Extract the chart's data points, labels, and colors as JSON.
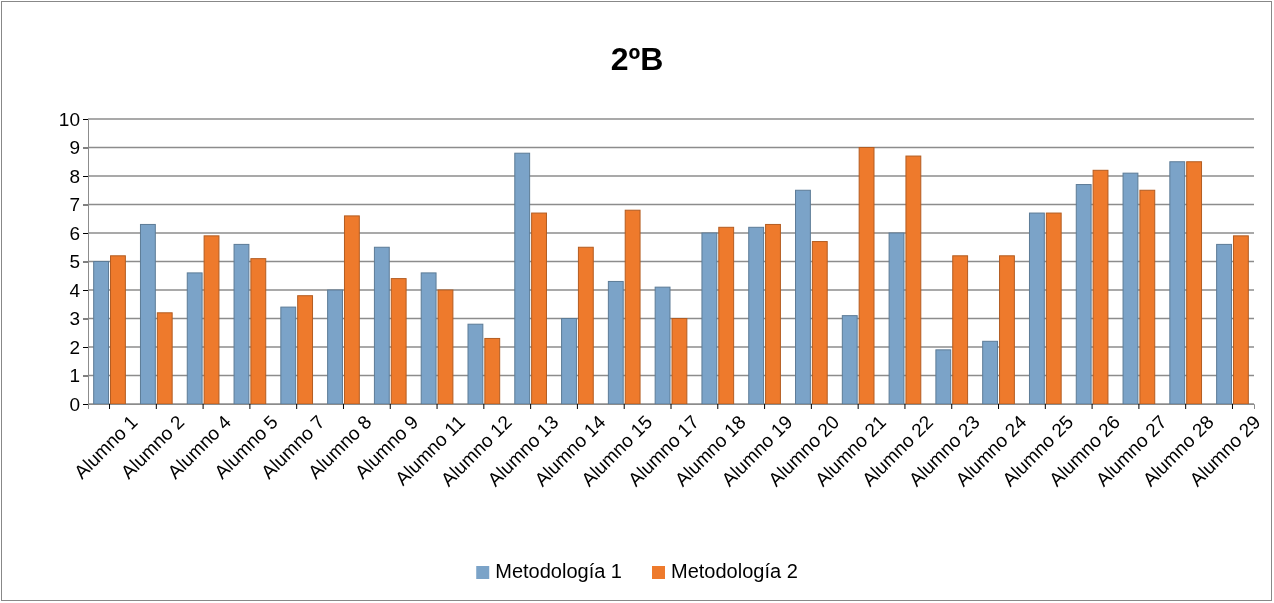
{
  "chart_data": {
    "type": "bar",
    "title": "2ºB",
    "categories": [
      "Alumno 1",
      "Alumno 2",
      "Alumno 4",
      "Alumno 5",
      "Alumno 7",
      "Alumno 8",
      "Alumno 9",
      "Alumno 11",
      "Alumno 12",
      "Alumno 13",
      "Alumno 14",
      "Alumno 15",
      "Alumno 17",
      "Alumno 18",
      "Alumno 19",
      "Alumno 20",
      "Alumno 21",
      "Alumno 22",
      "Alumno 23",
      "Alumno 24",
      "Alumno 25",
      "Alumno 26",
      "Alumno 27",
      "Alumno 28",
      "Alumno 29"
    ],
    "series": [
      {
        "name": "Metodología 1",
        "color": "#7ba3c8",
        "values": [
          5.0,
          6.3,
          4.6,
          5.6,
          3.4,
          4.0,
          5.5,
          4.6,
          2.8,
          8.8,
          3.0,
          4.3,
          4.1,
          6.0,
          6.2,
          7.5,
          3.1,
          6.0,
          1.9,
          2.2,
          6.7,
          7.7,
          8.1,
          8.5,
          5.6
        ]
      },
      {
        "name": "Metodología 2",
        "color": "#ee7a2c",
        "values": [
          5.2,
          3.2,
          5.9,
          5.1,
          3.8,
          6.6,
          4.4,
          4.0,
          2.3,
          6.7,
          5.5,
          6.8,
          3.0,
          6.2,
          6.3,
          5.7,
          9.0,
          8.7,
          5.2,
          5.2,
          6.7,
          8.2,
          7.5,
          8.5,
          5.9
        ]
      }
    ],
    "ylim": [
      0,
      10
    ],
    "yticks": [
      0,
      1,
      2,
      3,
      4,
      5,
      6,
      7,
      8,
      9,
      10
    ],
    "grid": "y",
    "legend": "bottom"
  }
}
